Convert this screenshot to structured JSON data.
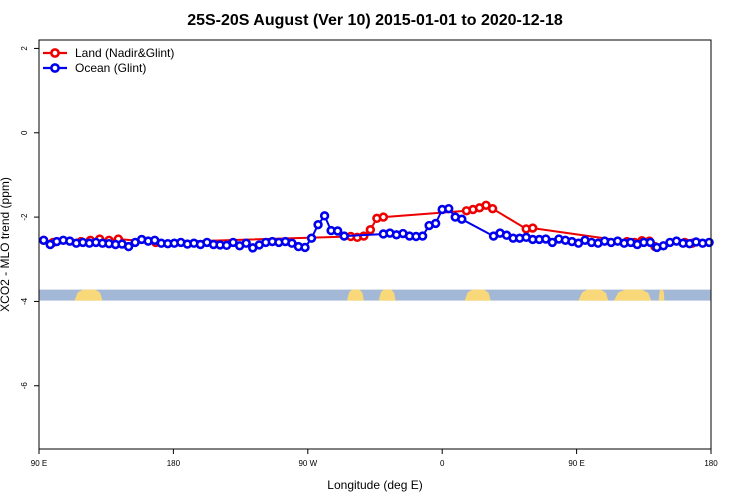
{
  "chart_data": {
    "type": "line",
    "title": "25S-20S August (Ver 10)   2015-01-01 to 2020-12-18",
    "xlabel": "Longitude (deg E)",
    "ylabel": "XCO2 - MLO trend (ppm)",
    "xlim": [
      90,
      450
    ],
    "ylim": [
      -7.5,
      2.2
    ],
    "x_ticks": [
      {
        "value": 90,
        "label": "90 E"
      },
      {
        "value": 162,
        "label": "180"
      },
      {
        "value": 234,
        "label": "90 W"
      },
      {
        "value": 306,
        "label": "0"
      },
      {
        "value": 378,
        "label": "90 E"
      },
      {
        "value": 450,
        "label": "180"
      }
    ],
    "y_ticks": [
      {
        "value": 2,
        "label": "2"
      },
      {
        "value": 0,
        "label": "0"
      },
      {
        "value": -2,
        "label": "-2"
      },
      {
        "value": -4,
        "label": "-4"
      },
      {
        "value": -6,
        "label": "-6"
      }
    ],
    "legend": {
      "position": "top-left"
    },
    "land_mask": {
      "y_range": [
        -3.98,
        -3.72
      ],
      "ocean_color": "#a3b7d6",
      "land_color": "#f8d878",
      "land_segments": [
        [
          109,
          124
        ],
        [
          255,
          264
        ],
        [
          272,
          281
        ],
        [
          318,
          332
        ],
        [
          379,
          395
        ],
        [
          398,
          418
        ],
        [
          422,
          425
        ]
      ]
    },
    "series": [
      {
        "name": "Land (Nadir&Glint)",
        "color": "#ee0000",
        "x": [
          92.5,
          97.5,
          112.5,
          117.5,
          122.5,
          127.5,
          132.5,
          152.5,
          257,
          260.5,
          264,
          267.5,
          271,
          274.5,
          319,
          322.5,
          326,
          329.5,
          333,
          351,
          354.5,
          405,
          409,
          413,
          417,
          420,
          436,
          440
        ],
        "y": [
          -2.55,
          -2.6,
          -2.58,
          -2.55,
          -2.52,
          -2.55,
          -2.52,
          -2.6,
          -2.46,
          -2.48,
          -2.45,
          -2.3,
          -2.03,
          -2.0,
          -1.85,
          -1.82,
          -1.78,
          -1.72,
          -1.8,
          -2.28,
          -2.26,
          -2.58,
          -2.6,
          -2.56,
          -2.57,
          -2.7,
          -2.6,
          -2.62
        ]
      },
      {
        "name": "Ocean (Glint)",
        "color": "#0000ee",
        "x": [
          92.5,
          96,
          99.5,
          103,
          106.5,
          110,
          113.5,
          117,
          120.5,
          124,
          127.5,
          131,
          134.5,
          138,
          141.5,
          145,
          148.5,
          152,
          155.5,
          159,
          162.5,
          166,
          169.5,
          173,
          176.5,
          180,
          183.5,
          187,
          190.5,
          194,
          197.5,
          201,
          204.5,
          208,
          211.5,
          215,
          218.5,
          222,
          225.5,
          229,
          232.5,
          236,
          239.5,
          243,
          246.5,
          250,
          253.5,
          274.5,
          278,
          281.5,
          285,
          288.5,
          292,
          295.5,
          299,
          302.5,
          306,
          309.5,
          313,
          316.5,
          333.5,
          337,
          340.5,
          344,
          347.5,
          351,
          354.5,
          358,
          361.5,
          365,
          368.5,
          372,
          375.5,
          379,
          382.5,
          386,
          389.5,
          393,
          396.5,
          400,
          403.5,
          407,
          410.5,
          414,
          417.5,
          421,
          424.5,
          428,
          431.5,
          435,
          438.5,
          442,
          445.5,
          449
        ],
        "y": [
          -2.55,
          -2.65,
          -2.58,
          -2.55,
          -2.57,
          -2.62,
          -2.6,
          -2.62,
          -2.6,
          -2.62,
          -2.63,
          -2.65,
          -2.64,
          -2.7,
          -2.6,
          -2.53,
          -2.57,
          -2.55,
          -2.62,
          -2.63,
          -2.62,
          -2.6,
          -2.64,
          -2.62,
          -2.65,
          -2.6,
          -2.65,
          -2.66,
          -2.67,
          -2.6,
          -2.68,
          -2.62,
          -2.73,
          -2.66,
          -2.6,
          -2.58,
          -2.6,
          -2.58,
          -2.62,
          -2.7,
          -2.72,
          -2.5,
          -2.18,
          -1.97,
          -2.32,
          -2.33,
          -2.45,
          -2.4,
          -2.38,
          -2.42,
          -2.39,
          -2.45,
          -2.46,
          -2.45,
          -2.2,
          -2.15,
          -1.82,
          -1.8,
          -2.0,
          -2.05,
          -2.45,
          -2.38,
          -2.43,
          -2.5,
          -2.5,
          -2.48,
          -2.53,
          -2.53,
          -2.52,
          -2.6,
          -2.52,
          -2.55,
          -2.58,
          -2.62,
          -2.55,
          -2.6,
          -2.62,
          -2.57,
          -2.6,
          -2.57,
          -2.62,
          -2.6,
          -2.65,
          -2.6,
          -2.6,
          -2.72,
          -2.68,
          -2.6,
          -2.57,
          -2.62,
          -2.63,
          -2.59,
          -2.62,
          -2.6
        ]
      }
    ]
  }
}
